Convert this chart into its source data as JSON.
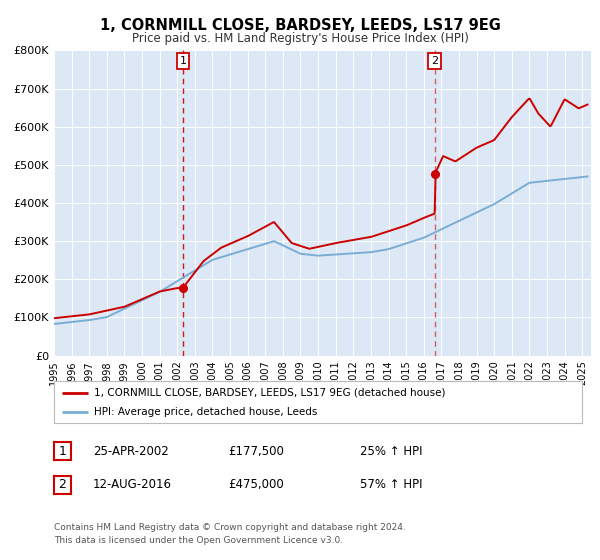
{
  "title": "1, CORNMILL CLOSE, BARDSEY, LEEDS, LS17 9EG",
  "subtitle": "Price paid vs. HM Land Registry's House Price Index (HPI)",
  "ylim": [
    0,
    800000
  ],
  "yticks": [
    0,
    100000,
    200000,
    300000,
    400000,
    500000,
    600000,
    700000,
    800000
  ],
  "ytick_labels": [
    "£0",
    "£100K",
    "£200K",
    "£300K",
    "£400K",
    "£500K",
    "£600K",
    "£700K",
    "£800K"
  ],
  "sale1_date": 2002.32,
  "sale1_price": 177500,
  "sale2_date": 2016.62,
  "sale2_price": 475000,
  "legend_property": "1, CORNMILL CLOSE, BARDSEY, LEEDS, LS17 9EG (detached house)",
  "legend_hpi": "HPI: Average price, detached house, Leeds",
  "table_row1": [
    "1",
    "25-APR-2002",
    "£177,500",
    "25% ↑ HPI"
  ],
  "table_row2": [
    "2",
    "12-AUG-2016",
    "£475,000",
    "57% ↑ HPI"
  ],
  "footer1": "Contains HM Land Registry data © Crown copyright and database right 2024.",
  "footer2": "This data is licensed under the Open Government Licence v3.0.",
  "property_color": "#cc0000",
  "hpi_color": "#7aadd4",
  "background_color": "#dce8f5",
  "plot_bg": "#ffffff",
  "xmin": 1995,
  "xmax": 2025.5
}
